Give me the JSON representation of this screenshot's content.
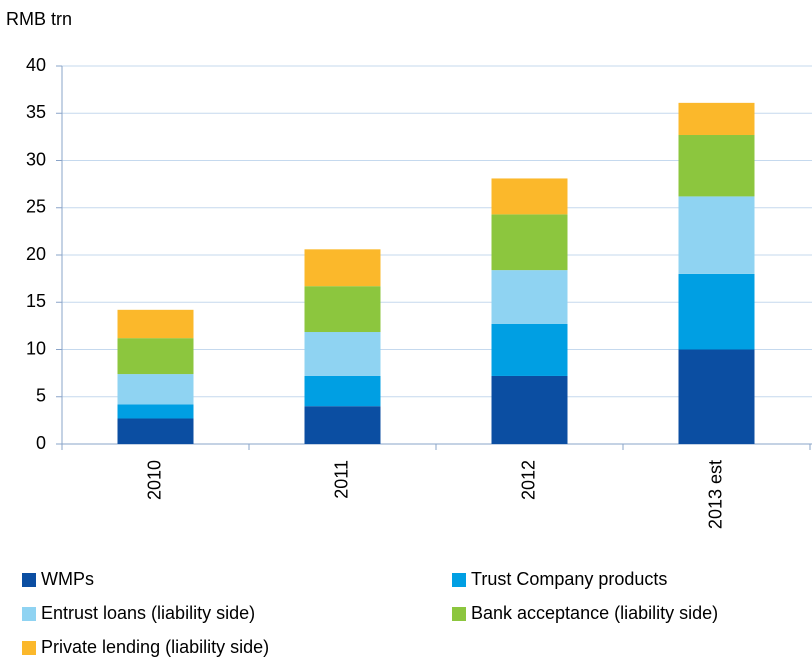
{
  "chart_data": {
    "type": "stacked_bar",
    "y_label": "RMB trn",
    "categories": [
      "2010",
      "2011",
      "2012",
      "2013 est"
    ],
    "series": [
      {
        "name": "WMPs",
        "color": "#0b4ea2",
        "values": [
          2.7,
          4.0,
          7.2,
          10.0
        ]
      },
      {
        "name": "Trust Company products",
        "color": "#009fe3",
        "values": [
          1.5,
          3.2,
          5.5,
          8.0
        ]
      },
      {
        "name": "Entrust loans (liability side)",
        "color": "#8fd3f2",
        "values": [
          3.2,
          4.65,
          5.7,
          8.2
        ]
      },
      {
        "name": "Bank acceptance (liability side)",
        "color": "#8cc63e",
        "values": [
          3.8,
          4.85,
          5.9,
          6.5
        ]
      },
      {
        "name": "Private lending (liability side)",
        "color": "#fbb82b",
        "values": [
          3.0,
          3.9,
          3.8,
          3.4
        ]
      }
    ],
    "ylim": [
      0,
      40
    ],
    "yticks": [
      0,
      5,
      10,
      15,
      20,
      25,
      30,
      35,
      40
    ],
    "grid": true
  }
}
